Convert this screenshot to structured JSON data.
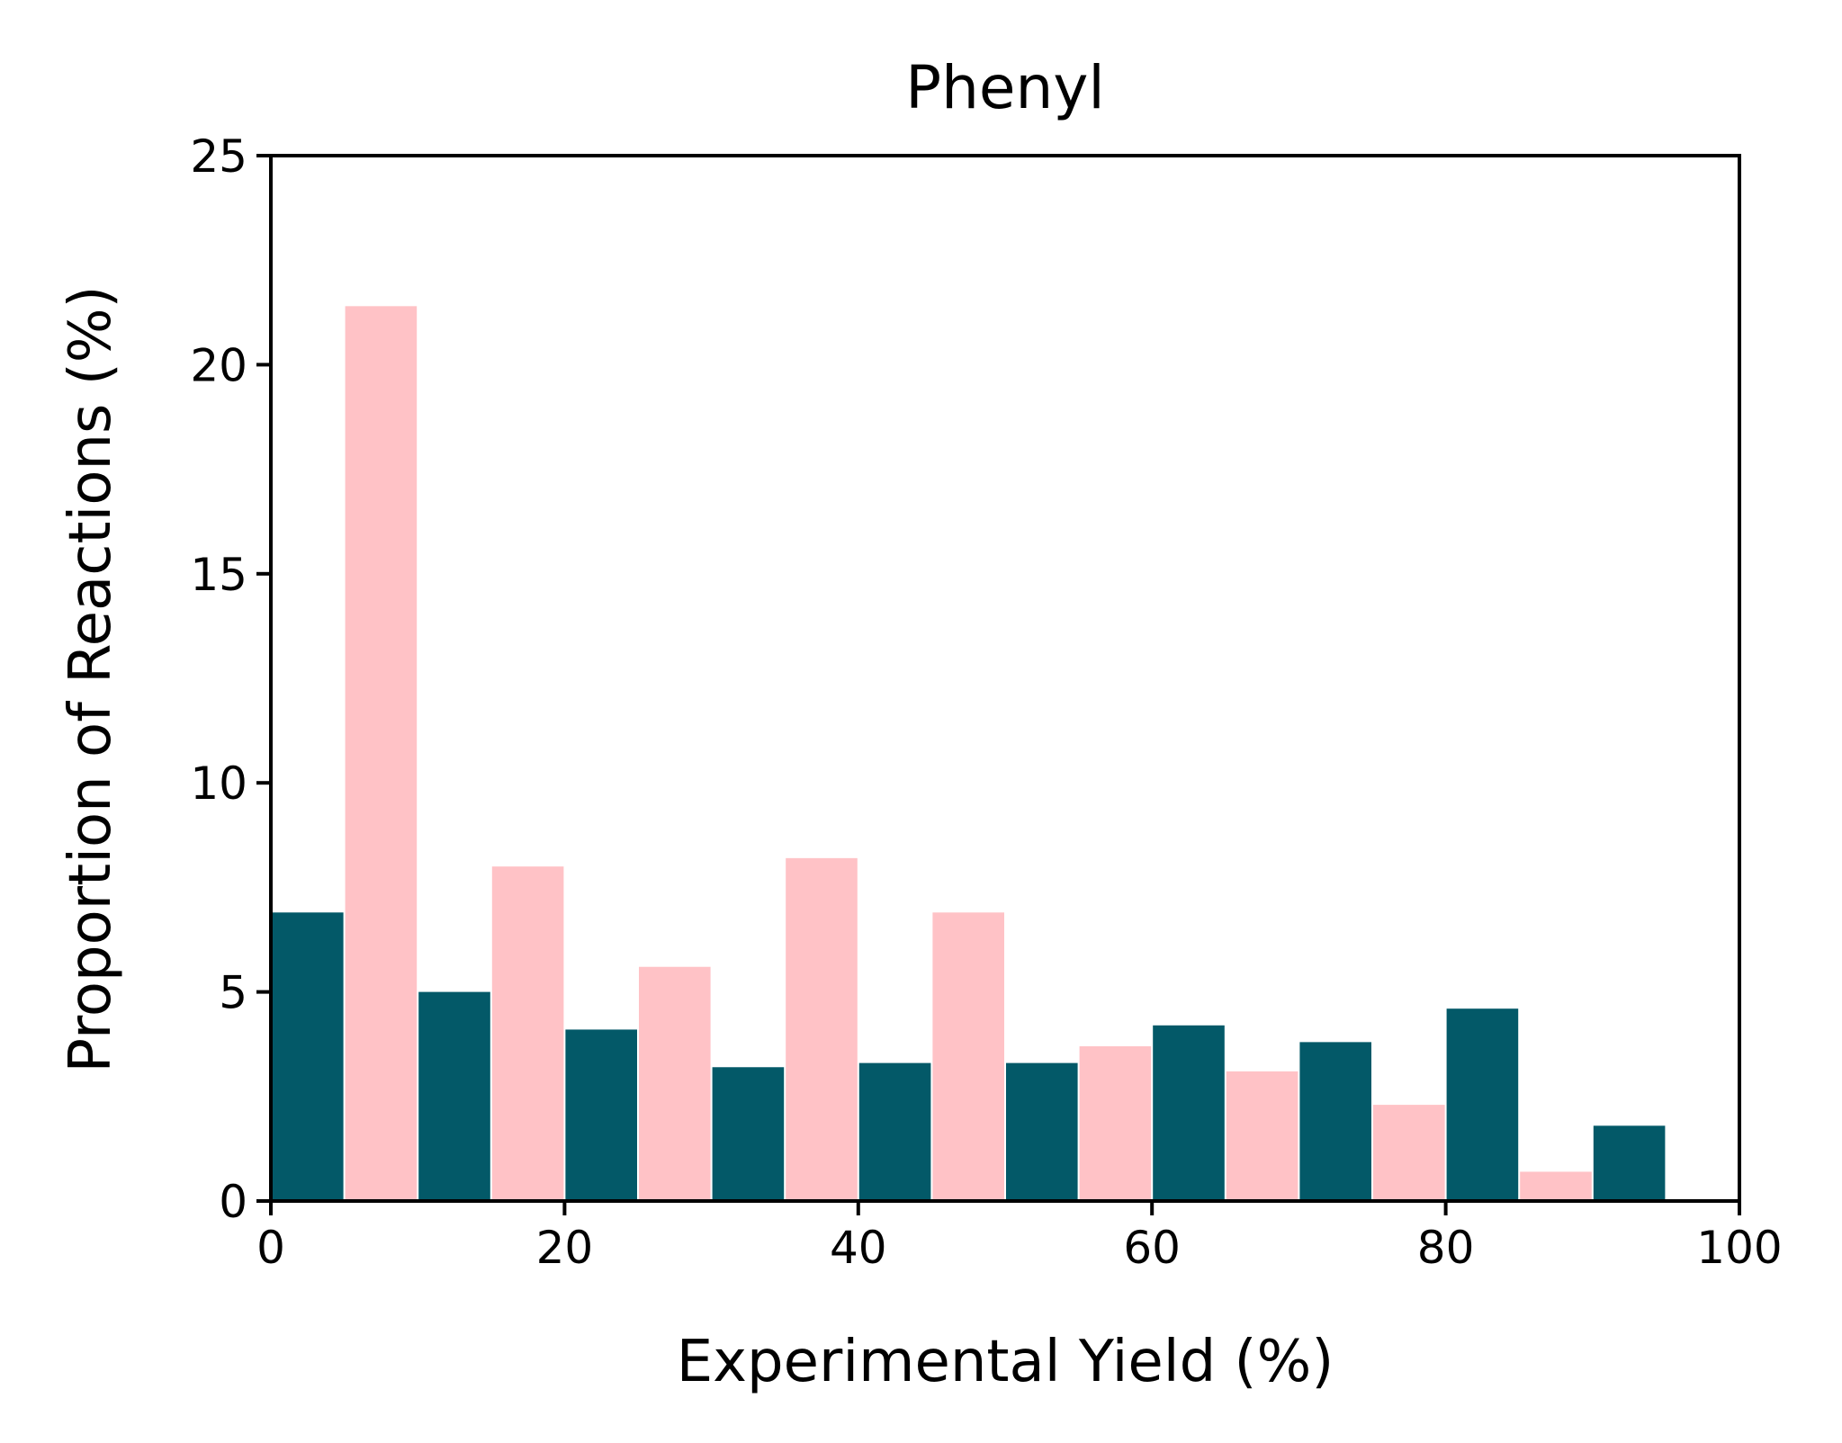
{
  "chart_data": {
    "type": "bar",
    "title": "Phenyl",
    "xlabel": "Experimental Yield (%)",
    "ylabel": "Proportion of Reactions (%)",
    "xlim": [
      0,
      100
    ],
    "ylim": [
      0,
      25
    ],
    "xticks": [
      0,
      20,
      40,
      60,
      80,
      100
    ],
    "yticks": [
      0,
      5,
      10,
      15,
      20,
      25
    ],
    "grid": false,
    "legend": "none",
    "bin_edges": [
      0,
      10,
      20,
      30,
      40,
      50,
      60,
      70,
      80,
      90,
      100
    ],
    "series": [
      {
        "color": "#035968",
        "values": [
          6.9,
          5.0,
          4.1,
          3.2,
          3.3,
          3.3,
          4.2,
          3.8,
          4.6,
          1.8
        ]
      },
      {
        "color": "#ffc2c6",
        "values": [
          21.4,
          8.0,
          5.6,
          8.2,
          6.9,
          3.7,
          3.1,
          2.3,
          0.7,
          0.0
        ]
      }
    ]
  }
}
